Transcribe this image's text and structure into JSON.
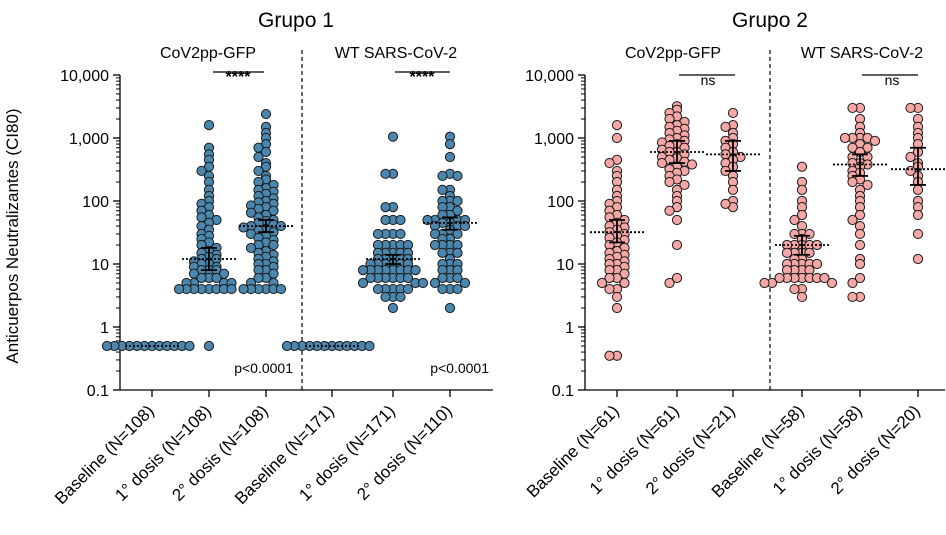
{
  "chart_data": [
    {
      "type": "scatter",
      "title": "Grupo 1",
      "ylabel": "Anticuerpos Neutralizantes (CI80)",
      "yscale": "log",
      "ylim": [
        0.1,
        10000
      ],
      "yticks": [
        "10,000",
        "1,000",
        "100",
        "10",
        "1",
        "0.1"
      ],
      "categories": [
        "Baseline (N=108)",
        "1° dosis (N=108)",
        "2° dosis (N=108)",
        "Baseline (N=171)",
        "1° dosis (N=171)",
        "2° dosis (N=110)"
      ],
      "panels": [
        {
          "label": "CoV2pp-GFP",
          "significance": "****",
          "p_value": "p<0.0001"
        },
        {
          "label": "WT SARS-CoV-2",
          "significance": "****",
          "p_value": "p<0.0001"
        }
      ],
      "point_color": "#4A86AE",
      "series": [
        {
          "median": 0.5,
          "ci": [
            0.5,
            0.5
          ],
          "values": [
            0.5,
            0.5,
            0.5,
            0.5,
            0.5,
            0.5,
            0.5,
            0.5,
            0.5,
            0.5,
            0.5,
            0.5
          ]
        },
        {
          "median": 12,
          "ci": [
            8,
            18
          ],
          "values": [
            1600,
            700,
            550,
            450,
            350,
            300,
            250,
            200,
            150,
            120,
            100,
            90,
            80,
            70,
            60,
            55,
            50,
            45,
            40,
            35,
            30,
            28,
            25,
            22,
            20,
            18,
            16,
            15,
            14,
            13,
            12,
            12,
            11,
            10,
            10,
            9,
            9,
            8,
            8,
            8,
            7,
            7,
            6,
            6,
            6,
            5,
            5,
            5,
            5,
            4,
            4,
            4,
            4,
            4,
            4,
            4,
            4,
            0.5
          ]
        },
        {
          "median": 40,
          "ci": [
            32,
            50
          ],
          "values": [
            2400,
            1500,
            1200,
            1000,
            800,
            700,
            600,
            500,
            400,
            350,
            300,
            250,
            220,
            200,
            180,
            160,
            150,
            140,
            130,
            120,
            110,
            100,
            95,
            90,
            85,
            80,
            75,
            70,
            65,
            60,
            55,
            50,
            48,
            45,
            42,
            40,
            40,
            38,
            36,
            34,
            32,
            30,
            28,
            26,
            24,
            22,
            20,
            20,
            18,
            16,
            15,
            14,
            13,
            12,
            11,
            10,
            10,
            9,
            8,
            8,
            7,
            6,
            6,
            5,
            5,
            4,
            4,
            4,
            4,
            4,
            4
          ]
        },
        {
          "median": 0.5,
          "ci": [
            0.5,
            0.5
          ],
          "values": [
            0.5,
            0.5,
            0.5,
            0.5,
            0.5,
            0.5,
            0.5,
            0.5,
            0.5,
            0.5,
            0.5,
            0.5
          ]
        },
        {
          "median": 12,
          "ci": [
            10,
            14
          ],
          "values": [
            1050,
            270,
            270,
            80,
            80,
            50,
            50,
            50,
            30,
            30,
            30,
            30,
            20,
            20,
            20,
            20,
            20,
            15,
            15,
            15,
            15,
            15,
            12,
            12,
            12,
            12,
            12,
            10,
            10,
            10,
            10,
            10,
            10,
            8,
            8,
            8,
            8,
            8,
            8,
            8,
            8,
            6,
            6,
            6,
            6,
            6,
            6,
            5,
            5,
            5,
            4,
            4,
            4,
            4,
            4,
            3,
            3,
            3,
            2
          ]
        },
        {
          "median": 45,
          "ci": [
            35,
            55
          ],
          "values": [
            1050,
            800,
            500,
            270,
            250,
            250,
            150,
            150,
            120,
            100,
            100,
            100,
            80,
            80,
            70,
            60,
            60,
            50,
            50,
            50,
            50,
            45,
            45,
            40,
            40,
            40,
            35,
            30,
            30,
            30,
            25,
            25,
            20,
            20,
            20,
            20,
            15,
            15,
            15,
            12,
            10,
            10,
            10,
            8,
            8,
            8,
            6,
            6,
            6,
            5,
            5,
            4,
            4,
            4,
            2
          ]
        }
      ]
    },
    {
      "type": "scatter",
      "title": "Grupo 2",
      "yscale": "log",
      "ylim": [
        0.1,
        10000
      ],
      "yticks": [
        "10,000",
        "1,000",
        "100",
        "10",
        "1",
        "0.1"
      ],
      "categories": [
        "Baseline (N=61)",
        "1° dosis (N=61)",
        "2° dosis (N=21)",
        "Baseline (N=58)",
        "1° dosis (N=58)",
        "2° dosis (N=20)"
      ],
      "panels": [
        {
          "label": "CoV2pp-GFP",
          "significance": "ns"
        },
        {
          "label": "WT SARS-CoV-2",
          "significance": "ns"
        }
      ],
      "point_color": "#F4A7A4",
      "series": [
        {
          "median": 32,
          "ci": [
            22,
            50
          ],
          "values": [
            1600,
            1000,
            450,
            400,
            300,
            250,
            200,
            150,
            120,
            100,
            90,
            80,
            70,
            60,
            55,
            50,
            45,
            40,
            38,
            35,
            32,
            30,
            28,
            26,
            24,
            22,
            20,
            18,
            16,
            15,
            14,
            13,
            12,
            11,
            10,
            10,
            9,
            8,
            8,
            7,
            6,
            6,
            5,
            5,
            4,
            4,
            3,
            2,
            0.35,
            0.35
          ]
        },
        {
          "median": 600,
          "ci": [
            400,
            900
          ],
          "values": [
            3200,
            2800,
            2500,
            2200,
            2000,
            1800,
            1600,
            1500,
            1400,
            1300,
            1200,
            1100,
            1000,
            950,
            900,
            850,
            800,
            750,
            700,
            650,
            600,
            600,
            550,
            500,
            480,
            450,
            420,
            400,
            380,
            350,
            320,
            300,
            280,
            250,
            220,
            200,
            180,
            150,
            120,
            100,
            80,
            70,
            50,
            20,
            6,
            5
          ]
        },
        {
          "median": 550,
          "ci": [
            300,
            900
          ],
          "values": [
            2500,
            1600,
            1500,
            1200,
            1000,
            900,
            800,
            700,
            600,
            550,
            500,
            450,
            400,
            350,
            300,
            250,
            200,
            150,
            100,
            80,
            90
          ]
        },
        {
          "median": 20,
          "ci": [
            14,
            28
          ],
          "values": [
            350,
            200,
            150,
            100,
            80,
            60,
            50,
            40,
            30,
            30,
            30,
            25,
            20,
            20,
            20,
            20,
            20,
            15,
            15,
            15,
            15,
            12,
            12,
            10,
            10,
            10,
            10,
            10,
            8,
            8,
            8,
            8,
            6,
            6,
            6,
            6,
            6,
            6,
            6,
            5,
            5,
            5,
            4,
            4,
            3
          ]
        },
        {
          "median": 380,
          "ci": [
            250,
            550
          ],
          "values": [
            3000,
            3000,
            2000,
            1500,
            1200,
            1000,
            1000,
            1000,
            1000,
            900,
            800,
            700,
            700,
            600,
            500,
            500,
            400,
            400,
            380,
            350,
            300,
            280,
            250,
            220,
            200,
            180,
            150,
            120,
            100,
            80,
            60,
            50,
            40,
            30,
            20,
            12,
            10,
            6,
            5,
            3,
            3
          ]
        },
        {
          "median": 320,
          "ci": [
            180,
            700
          ],
          "values": [
            3000,
            3000,
            2000,
            1500,
            1200,
            1000,
            800,
            600,
            500,
            400,
            350,
            300,
            250,
            200,
            150,
            100,
            80,
            60,
            30,
            12
          ]
        }
      ]
    }
  ]
}
